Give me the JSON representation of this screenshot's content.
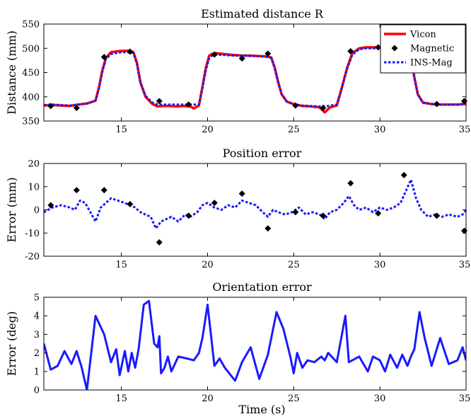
{
  "xlabel": "Time (s)",
  "chart_data": [
    {
      "type": "line",
      "title": "Estimated distance R",
      "xlabel": "",
      "ylabel": "Distance (mm)",
      "xlim": [
        10.5,
        35
      ],
      "ylim": [
        350,
        550
      ],
      "xticks": [
        15,
        20,
        25,
        30,
        35
      ],
      "yticks": [
        350,
        400,
        450,
        500,
        550
      ],
      "xtick_labels": [
        "15",
        "20",
        "25",
        "30",
        "35"
      ],
      "ytick_labels": [
        "350",
        "400",
        "450",
        "500",
        "550"
      ],
      "legend_position": "top-right",
      "series": [
        {
          "name": "Vicon",
          "style": "solid",
          "color": "#ff0000",
          "marker": "",
          "x": [
            10.5,
            11,
            11.5,
            12,
            12.5,
            13,
            13.5,
            13.7,
            13.9,
            14.1,
            14.4,
            14.8,
            15.2,
            15.5,
            15.7,
            15.9,
            16.1,
            16.4,
            16.8,
            17.1,
            17.4,
            17.8,
            18.2,
            18.6,
            19,
            19.2,
            19.5,
            19.7,
            19.9,
            20.1,
            20.3,
            20.5,
            21,
            21.5,
            22,
            22.5,
            23,
            23.5,
            23.7,
            23.9,
            24.1,
            24.3,
            24.6,
            25,
            25.5,
            26,
            26.5,
            26.8,
            27.1,
            27.5,
            27.8,
            28.1,
            28.4,
            28.8,
            29.2,
            29.6,
            30,
            30.5,
            30.8,
            31.2,
            31.5,
            31.8,
            32,
            32.2,
            32.5,
            33,
            33.5,
            34,
            34.5,
            35
          ],
          "y": [
            382,
            383,
            382,
            381,
            384,
            386,
            392,
            420,
            455,
            480,
            492,
            494,
            495,
            495,
            492,
            470,
            430,
            400,
            385,
            380,
            381,
            381,
            380,
            381,
            380,
            376,
            382,
            420,
            460,
            485,
            489,
            490,
            488,
            486,
            485,
            485,
            484,
            483,
            481,
            460,
            430,
            405,
            390,
            385,
            381,
            380,
            378,
            368,
            378,
            382,
            420,
            460,
            490,
            500,
            502,
            502,
            502,
            501,
            499,
            500,
            499,
            485,
            440,
            405,
            388,
            385,
            384,
            384,
            384,
            385
          ]
        },
        {
          "name": "Magnetic",
          "style": "none",
          "color": "#000000",
          "marker": "diamond",
          "x": [
            10.9,
            12.4,
            14.0,
            15.5,
            17.2,
            18.9,
            20.4,
            22.0,
            23.5,
            25.1,
            26.7,
            28.3,
            29.9,
            31.4,
            33.3,
            34.9
          ],
          "y": [
            381,
            377,
            482,
            493,
            391,
            384,
            487,
            479,
            489,
            382,
            377,
            494,
            502,
            481,
            385,
            391
          ]
        },
        {
          "name": "INS-Mag",
          "style": "dotted",
          "color": "#1a1aff",
          "marker": "",
          "x": [
            10.5,
            11,
            11.5,
            12,
            12.5,
            13,
            13.5,
            13.7,
            13.9,
            14.1,
            14.4,
            14.8,
            15.2,
            15.5,
            15.7,
            15.9,
            16.1,
            16.4,
            16.8,
            17.1,
            17.4,
            17.8,
            18.2,
            18.6,
            19,
            19.5,
            19.7,
            19.9,
            20.1,
            20.3,
            20.5,
            21,
            21.5,
            22,
            22.5,
            23,
            23.5,
            23.7,
            23.9,
            24.1,
            24.3,
            24.6,
            25,
            25.5,
            26,
            26.5,
            27,
            27.5,
            27.8,
            28.1,
            28.4,
            28.8,
            29.2,
            29.6,
            30,
            30.5,
            30.8,
            31.2,
            31.5,
            31.8,
            32,
            32.2,
            32.5,
            33,
            33.5,
            34,
            34.5,
            35
          ],
          "y": [
            383,
            384,
            383,
            382,
            384,
            386,
            392,
            418,
            452,
            478,
            488,
            491,
            492,
            492,
            490,
            468,
            430,
            402,
            388,
            384,
            384,
            384,
            384,
            384,
            384,
            384,
            418,
            455,
            480,
            486,
            487,
            486,
            485,
            485,
            484,
            484,
            482,
            480,
            458,
            428,
            405,
            390,
            384,
            382,
            381,
            380,
            381,
            384,
            420,
            458,
            487,
            498,
            500,
            500,
            500,
            500,
            499,
            498,
            497,
            482,
            440,
            405,
            388,
            385,
            384,
            384,
            384,
            386
          ]
        }
      ]
    },
    {
      "type": "line",
      "title": "Position error",
      "xlabel": "",
      "ylabel": "Error (mm)",
      "xlim": [
        10.5,
        35
      ],
      "ylim": [
        -20,
        20
      ],
      "xticks": [
        15,
        20,
        25,
        30,
        35
      ],
      "yticks": [
        -20,
        -10,
        0,
        10,
        20
      ],
      "xtick_labels": [
        "15",
        "20",
        "25",
        "30",
        "35"
      ],
      "ytick_labels": [
        "-20",
        "-10",
        "0",
        "10",
        "20"
      ],
      "series": [
        {
          "style": "dotted",
          "color": "#1a1aff",
          "marker": "",
          "x": [
            10.5,
            11,
            11.5,
            12,
            12.3,
            12.6,
            12.9,
            13.2,
            13.5,
            13.8,
            14.1,
            14.4,
            14.8,
            15.2,
            15.5,
            15.8,
            16.1,
            16.4,
            16.7,
            17,
            17.3,
            17.6,
            17.9,
            18.3,
            18.7,
            19,
            19.4,
            19.7,
            20,
            20.4,
            20.8,
            21.2,
            21.6,
            22,
            22.4,
            22.8,
            23.2,
            23.5,
            23.8,
            24.1,
            24.5,
            24.9,
            25.3,
            25.7,
            26.1,
            26.5,
            26.8,
            27.1,
            27.5,
            27.9,
            28.2,
            28.5,
            28.8,
            29.2,
            29.6,
            30,
            30.4,
            30.8,
            31.2,
            31.5,
            31.8,
            32.1,
            32.4,
            32.8,
            33.2,
            33.6,
            34,
            34.5,
            34.8,
            35
          ],
          "y": [
            -1,
            1,
            2,
            1,
            0,
            4,
            3,
            -1,
            -5,
            1,
            3,
            5,
            4,
            3,
            2,
            1,
            -1,
            -2,
            -3,
            -8,
            -5,
            -4,
            -3,
            -5,
            -2,
            -3,
            -1,
            2,
            3,
            1,
            0,
            2,
            1,
            4,
            3,
            2,
            -1,
            -3,
            0,
            -1,
            -2,
            -1,
            1,
            -2,
            -1,
            -2,
            -4,
            -1,
            0,
            3,
            6,
            2,
            0,
            1,
            -1,
            1,
            0,
            1,
            3,
            8,
            13,
            5,
            0,
            -3,
            -2,
            -3,
            -2,
            -3,
            -2,
            0
          ]
        },
        {
          "style": "none",
          "color": "#000000",
          "marker": "diamond",
          "x": [
            10.9,
            12.4,
            14.0,
            15.5,
            17.2,
            18.9,
            20.4,
            22.0,
            23.5,
            25.1,
            26.7,
            28.3,
            29.9,
            31.4,
            33.3,
            34.9
          ],
          "y": [
            2,
            8.5,
            8.5,
            2.5,
            -14,
            -2.5,
            3,
            7,
            -8,
            -1,
            -2.5,
            11.5,
            -1.5,
            15,
            -2.5,
            -9
          ]
        }
      ]
    },
    {
      "type": "line",
      "title": "Orientation error",
      "xlabel": "Time (s)",
      "ylabel": "Error (deg)",
      "xlim": [
        10.5,
        35
      ],
      "ylim": [
        0,
        5
      ],
      "xticks": [
        15,
        20,
        25,
        30,
        35
      ],
      "yticks": [
        0,
        1,
        2,
        3,
        4,
        5
      ],
      "xtick_labels": [
        "15",
        "20",
        "25",
        "30",
        "35"
      ],
      "ytick_labels": [
        "0",
        "1",
        "2",
        "3",
        "4",
        "5"
      ],
      "series": [
        {
          "style": "solid",
          "color": "#1a1aff",
          "marker": "",
          "x": [
            10.5,
            10.9,
            11.3,
            11.7,
            12.1,
            12.4,
            12.7,
            13.0,
            13.5,
            14.0,
            14.4,
            14.7,
            14.9,
            15.2,
            15.4,
            15.6,
            15.8,
            16.0,
            16.3,
            16.6,
            16.9,
            17.1,
            17.2,
            17.3,
            17.5,
            17.7,
            17.9,
            18.3,
            18.8,
            19.2,
            19.5,
            19.7,
            20.0,
            20.4,
            20.7,
            21.0,
            21.6,
            22.0,
            22.5,
            23.0,
            23.5,
            24.0,
            24.4,
            24.8,
            25.0,
            25.2,
            25.5,
            25.8,
            26.2,
            26.6,
            26.8,
            27.0,
            27.5,
            28.0,
            28.2,
            28.4,
            28.8,
            29.3,
            29.6,
            30.0,
            30.3,
            30.6,
            31.0,
            31.3,
            31.6,
            31.8,
            32.0,
            32.3,
            32.6,
            33.0,
            33.5,
            34.0,
            34.5,
            34.8,
            35.0
          ],
          "y": [
            2.5,
            1.1,
            1.3,
            2.1,
            1.4,
            2.1,
            1.2,
            0,
            4,
            3,
            1.5,
            2.2,
            0.8,
            2.1,
            1.0,
            2.0,
            1.2,
            2.2,
            4.6,
            4.8,
            2.5,
            2.3,
            2.9,
            0.9,
            1.2,
            1.8,
            1.0,
            1.8,
            1.7,
            1.6,
            2.0,
            2.8,
            4.6,
            1.3,
            1.7,
            1.2,
            0.5,
            1.5,
            2.3,
            0.6,
            1.9,
            4.2,
            3.3,
            1.8,
            0.9,
            2.0,
            1.2,
            1.6,
            1.5,
            1.8,
            1.6,
            2.0,
            1.5,
            4.0,
            1.5,
            1.6,
            1.8,
            1.0,
            1.8,
            1.6,
            1.0,
            1.9,
            1.2,
            1.9,
            1.3,
            1.8,
            2.2,
            4.2,
            2.8,
            1.3,
            2.8,
            1.4,
            1.6,
            2.3,
            1.6
          ]
        }
      ]
    }
  ]
}
